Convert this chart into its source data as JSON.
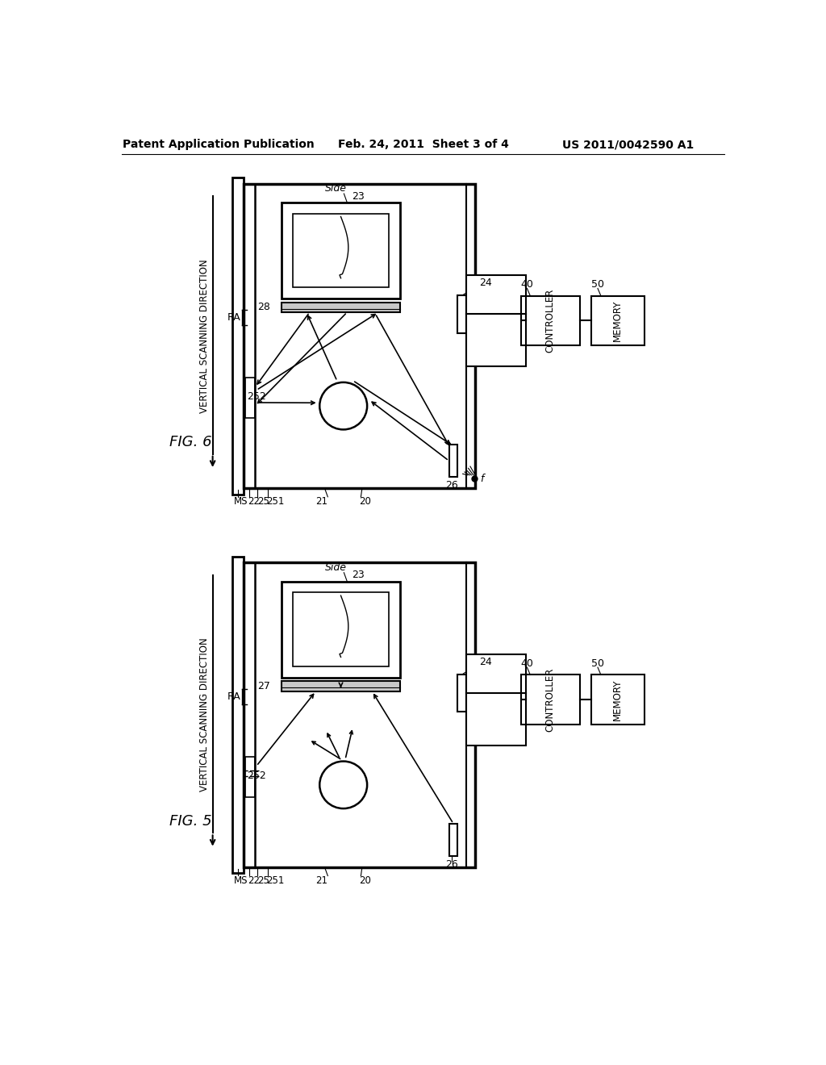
{
  "bg_color": "#ffffff",
  "header_left": "Patent Application Publication",
  "header_center": "Feb. 24, 2011  Sheet 3 of 4",
  "header_right": "US 2011/0042590 A1",
  "fig6_label": "FIG. 6",
  "fig5_label": "FIG. 5",
  "vertical_scanning": "VERTICAL SCANNING DIRECTION",
  "line_color": "#000000",
  "labels": {
    "MS": "MS",
    "22": "22",
    "25": "25",
    "251": "251",
    "21": "21",
    "20": "20",
    "26": "26",
    "252": "252",
    "28": "28",
    "RA": "RA",
    "23": "23",
    "24": "24",
    "40": "40",
    "50": "50",
    "Side": "Side",
    "f": "f",
    "27": "27",
    "CONTROLLER": "CONTROLLER",
    "MEMORY": "MEMORY"
  }
}
